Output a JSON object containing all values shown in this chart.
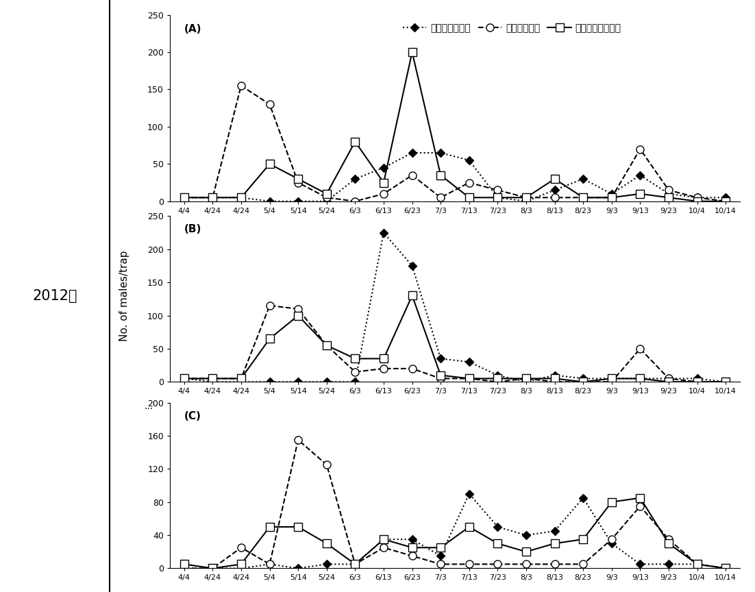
{
  "x_labels": [
    "4/4",
    "4/24",
    "4/24",
    "5/4",
    "5/14",
    "5/24",
    "6/3",
    "6/13",
    "6/23",
    "7/3",
    "7/13",
    "7/23",
    "8/3",
    "8/13",
    "8/23",
    "9/3",
    "9/13",
    "9/23",
    "10/4",
    "10/14"
  ],
  "panel_labels": [
    "(A)",
    "(B)",
    "(C)"
  ],
  "panel_A": {
    "diamond": [
      5,
      5,
      5,
      0,
      0,
      0,
      30,
      45,
      65,
      65,
      55,
      5,
      0,
      15,
      30,
      10,
      35,
      10,
      5,
      5
    ],
    "circle": [
      5,
      5,
      155,
      130,
      25,
      5,
      0,
      10,
      35,
      5,
      25,
      15,
      5,
      5,
      5,
      5,
      70,
      15,
      5,
      0
    ],
    "square": [
      5,
      5,
      5,
      50,
      30,
      10,
      80,
      25,
      200,
      35,
      5,
      5,
      5,
      30,
      5,
      5,
      10,
      5,
      0,
      0
    ]
  },
  "panel_B": {
    "diamond": [
      5,
      0,
      0,
      0,
      0,
      0,
      0,
      225,
      175,
      35,
      30,
      10,
      0,
      10,
      5,
      5,
      5,
      5,
      5,
      0
    ],
    "circle": [
      5,
      5,
      5,
      115,
      110,
      55,
      15,
      20,
      20,
      5,
      5,
      0,
      5,
      0,
      0,
      0,
      50,
      5,
      0,
      0
    ],
    "square": [
      5,
      5,
      5,
      65,
      100,
      55,
      35,
      35,
      130,
      10,
      5,
      5,
      5,
      5,
      0,
      5,
      5,
      0,
      0,
      0
    ]
  },
  "panel_C": {
    "diamond": [
      0,
      0,
      0,
      5,
      0,
      5,
      5,
      35,
      35,
      15,
      90,
      50,
      40,
      45,
      85,
      30,
      5,
      5,
      5,
      0
    ],
    "circle": [
      0,
      0,
      25,
      5,
      155,
      125,
      5,
      25,
      15,
      5,
      5,
      5,
      5,
      5,
      5,
      35,
      75,
      35,
      5,
      0
    ],
    "square": [
      5,
      0,
      5,
      50,
      50,
      30,
      5,
      35,
      25,
      25,
      50,
      30,
      20,
      30,
      35,
      80,
      85,
      30,
      5,
      0
    ]
  },
  "ylim_AB": [
    0,
    250
  ],
  "ylim_C": [
    0,
    200
  ],
  "yticks_AB": [
    0,
    50,
    100,
    150,
    200,
    250
  ],
  "yticks_C": [
    0,
    40,
    80,
    120,
    160,
    200
  ],
  "ylabel": "No. of males/trap",
  "left_label": "2012년",
  "legend_labels": [
    "복숭아심식나방",
    "복숭아순나방",
    "복숭아순나방불이"
  ],
  "dots_label": "...",
  "background_color": "#ffffff"
}
